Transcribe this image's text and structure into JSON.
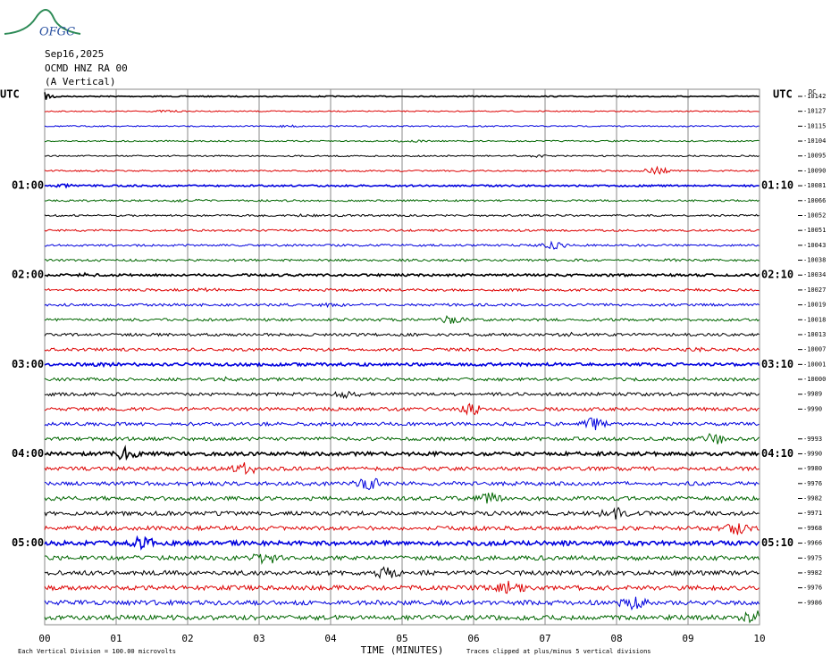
{
  "logo": "OFGC",
  "header": {
    "date": "Sep16,2025",
    "station": "OCMD HNZ RA 00",
    "component": "(A Vertical)"
  },
  "left_axis": {
    "title": "UTC",
    "labels": [
      "01:00",
      "02:00",
      "03:00",
      "04:00",
      "05:00"
    ]
  },
  "right_axis": {
    "title": "UTC",
    "labels": [
      "01:10",
      "02:10",
      "03:10",
      "04:10",
      "05:10"
    ],
    "dc_label": "DC",
    "row_values": [
      "-10142",
      "-10127",
      "-10115",
      "-10104",
      "-10095",
      "-10090",
      "-10081",
      "-10066",
      "-10052",
      "-10051",
      "-10043",
      "-10038",
      "-10034",
      "-10027",
      "-10019",
      "-10018",
      "-10013",
      "-10007",
      "-10001",
      "-10000",
      "-9989",
      "-9990",
      null,
      "-9993",
      "-9990",
      "-9980",
      "-9976",
      "-9982",
      "-9971",
      "-9968",
      "-9966",
      "-9975",
      "-9982",
      "-9976",
      "-9986",
      null
    ]
  },
  "x_axis": {
    "title": "TIME (MINUTES)",
    "ticks": [
      "00",
      "01",
      "02",
      "03",
      "04",
      "05",
      "06",
      "07",
      "08",
      "09",
      "10"
    ]
  },
  "footer": {
    "scale_note": "Each Vertical Division = 100.00 microvolts",
    "clip_note": "Traces clipped at plus/minus 5 vertical divisions"
  },
  "trace_colors": [
    "#000000",
    "#dd0000",
    "#0000dd",
    "#006600"
  ]
}
